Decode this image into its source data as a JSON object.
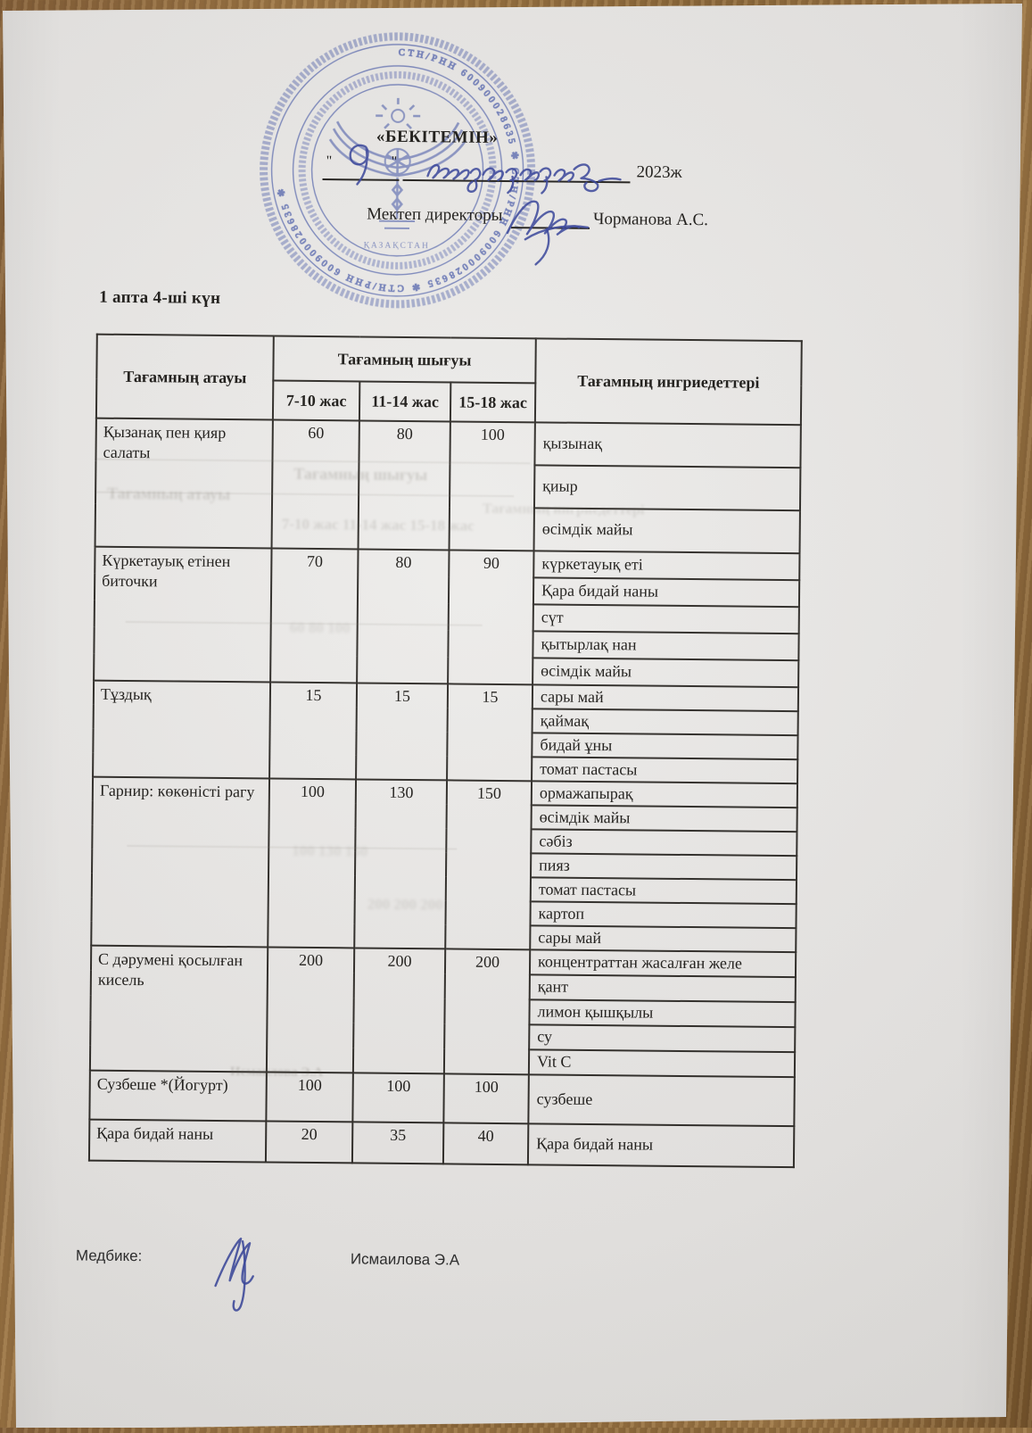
{
  "document": {
    "approval": {
      "approved_label": "«БЕКІТЕМІН»",
      "day_quote_open": "\"",
      "day_handwritten": "9",
      "day_quote_close": "\"",
      "month_handwritten": "наурыз",
      "year_label": "2023ж",
      "director_label": "Мектеп директоры",
      "director_name": "Чорманова А.С."
    },
    "stamp": {
      "id_text": "СТН/РНН 600900028635",
      "emblem_text": "ҚАЗАҚСТАН",
      "ink_color": "#4557a8"
    },
    "period_title": "1 апта  4-ші күн",
    "menu_table": {
      "headers": {
        "dish": "Тағамның атауы",
        "output": "Тағамның шығуы",
        "ingredients": "Тағамның ингриедеттері"
      },
      "age_groups": [
        "7-10 жас",
        "11-14 жас",
        "15-18 жас"
      ],
      "rows": [
        {
          "dish": "Қызанақ пен қияр салаты",
          "values": [
            "60",
            "80",
            "100"
          ],
          "ingredients": [
            "қызынақ",
            "қиыр",
            "өсімдік майы"
          ]
        },
        {
          "dish": "Күркетауық етінен биточки",
          "values": [
            "70",
            "80",
            "90"
          ],
          "ingredients": [
            "күркетауық еті",
            "Қара бидай наны",
            "сүт",
            "қытырлақ нан",
            "өсімдік майы"
          ]
        },
        {
          "dish": "Тұздық",
          "values": [
            "15",
            "15",
            "15"
          ],
          "ingredients": [
            "сары май",
            "қаймақ",
            "бидай ұны",
            "томат пастасы"
          ]
        },
        {
          "dish": "Гарнир: көкөністі рагу",
          "values": [
            "100",
            "130",
            "150"
          ],
          "ingredients": [
            "ормажапырақ",
            "өсімдік майы",
            "сәбіз",
            "пияз",
            "томат пастасы",
            "картоп",
            "сары май"
          ]
        },
        {
          "dish": "С дәрумені қосылған кисель",
          "values": [
            "200",
            "200",
            "200"
          ],
          "ingredients": [
            "концентраттан жасалған желе",
            "қант",
            "лимон қышқылы",
            "су",
            "Vit C"
          ]
        },
        {
          "dish": "Сузбеше *(Йогурт)",
          "values": [
            "100",
            "100",
            "100"
          ],
          "ingredients": [
            "сузбеше"
          ]
        },
        {
          "dish": "Қара бидай наны",
          "values": [
            "20",
            "35",
            "40"
          ],
          "ingredients": [
            "Қара бидай наны"
          ]
        }
      ]
    },
    "footer": {
      "nurse_label": "Медбике:",
      "nurse_name": "Исмаилова Э.А"
    },
    "bleed_through_texts": [
      "Тағамның шығуы",
      "Тағамның атауы",
      "7-10 жас   11-14 жас   15-18 жас",
      "Тағамның ингриедеттері",
      "60      80      100",
      "100      130      150",
      "200      200      200",
      "Исмаилова Э.А"
    ]
  }
}
